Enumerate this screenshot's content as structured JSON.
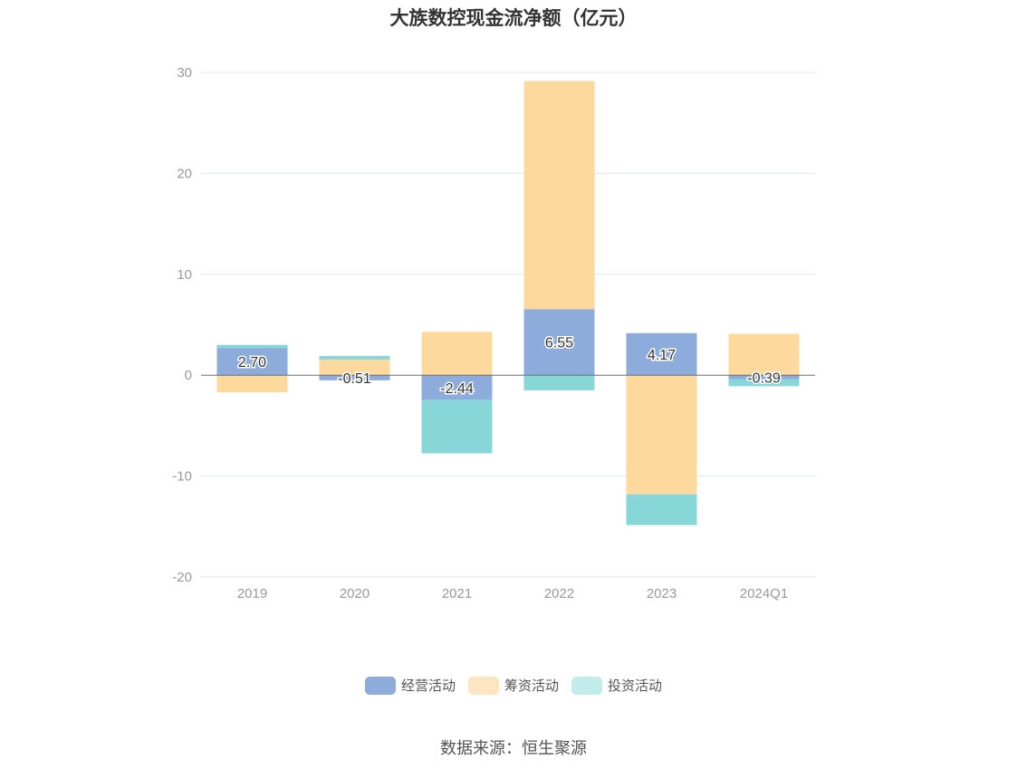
{
  "chart_data": {
    "type": "bar",
    "stacked": true,
    "title": "大族数控现金流净额（亿元）",
    "categories": [
      "2019",
      "2020",
      "2021",
      "2022",
      "2023",
      "2024Q1"
    ],
    "ylim": [
      -20,
      30
    ],
    "yticks": [
      30,
      20,
      10,
      0,
      -10,
      -20
    ],
    "grid": true,
    "legend_position": "bottom",
    "series": [
      {
        "name": "经营活动",
        "color": "#8eacdb",
        "values": [
          2.7,
          -0.51,
          -2.44,
          6.55,
          4.17,
          -0.39
        ],
        "labels": [
          "2.70",
          "-0.51",
          "-2.44",
          "6.55",
          "4.17",
          "-0.39"
        ]
      },
      {
        "name": "筹资活动",
        "color": "#fed99d",
        "values": [
          -1.7,
          1.55,
          4.3,
          22.6,
          -11.8,
          4.1
        ]
      },
      {
        "name": "投资活动",
        "color": "#87d6d8",
        "values": [
          0.3,
          0.35,
          -5.3,
          -1.5,
          -3.05,
          -0.7
        ]
      }
    ]
  },
  "legend": {
    "items": [
      {
        "label": "经营活动",
        "color": "#8eacdb"
      },
      {
        "label": "筹资活动",
        "color": "#fee5c2"
      },
      {
        "label": "投资活动",
        "color": "#c2ebec"
      }
    ]
  },
  "source": "数据来源：恒生聚源"
}
